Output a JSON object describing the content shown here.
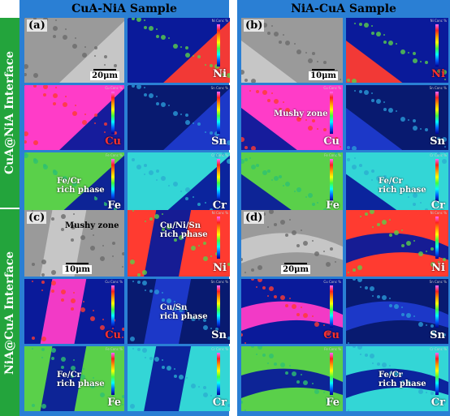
{
  "figure": {
    "columns": [
      {
        "title": "CuA-NiA Sample"
      },
      {
        "title": "NiA-CuA Sample"
      }
    ],
    "rows": [
      {
        "label": "CuA@NiA Interface"
      },
      {
        "label": "NiA@CuA Interface"
      }
    ],
    "blocks": [
      {
        "tag": "(a)",
        "scale_bar": "20μm",
        "maps": [
          {
            "element": "",
            "type": "sem"
          },
          {
            "element": "Ni",
            "type": "ni",
            "legend": "Ni Conc %"
          },
          {
            "element": "Cu",
            "type": "cu",
            "legend": "Cu Conc %",
            "red": true
          },
          {
            "element": "Sn",
            "type": "sn",
            "legend": "Sn Conc %"
          },
          {
            "element": "Fe",
            "type": "fe",
            "legend": "Fe Conc %",
            "annotation": "Fe/Cr\nrich phase"
          },
          {
            "element": "Cr",
            "type": "cr",
            "legend": "Cr Conc %"
          }
        ]
      },
      {
        "tag": "(b)",
        "scale_bar": "10μm",
        "maps": [
          {
            "element": "",
            "type": "sem"
          },
          {
            "element": "Ni",
            "type": "ni",
            "legend": "Ni Conc %",
            "red": true
          },
          {
            "element": "Cu",
            "type": "cu",
            "legend": "Cu Conc %",
            "annotation": "Mushy zone"
          },
          {
            "element": "Sn",
            "type": "sn",
            "legend": "Sn Conc %"
          },
          {
            "element": "Fe",
            "type": "fe",
            "legend": "Fe Conc %"
          },
          {
            "element": "Cr",
            "type": "cr",
            "legend": "Cr Conc %",
            "annotation": "Fe/Cr\nrich phase"
          }
        ]
      },
      {
        "tag": "(c)",
        "scale_bar": "10μm",
        "maps": [
          {
            "element": "",
            "type": "sem",
            "annotation": "Mushy zone"
          },
          {
            "element": "Ni",
            "type": "ni",
            "legend": "Ni Conc %",
            "annotation": "Cu/Ni/Sn\nrich phase"
          },
          {
            "element": "Cu",
            "type": "cu",
            "legend": "Cu Conc %",
            "red": true
          },
          {
            "element": "Sn",
            "type": "sn",
            "legend": "Sn Conc %",
            "annotation": "Cu/Sn\nrich phase"
          },
          {
            "element": "Fe",
            "type": "fe",
            "legend": "Fe Conc %",
            "annotation": "Fe/Cr\nrich phase"
          },
          {
            "element": "Cr",
            "type": "cr",
            "legend": "Cr Conc %"
          }
        ]
      },
      {
        "tag": "(d)",
        "scale_bar": "20μm",
        "maps": [
          {
            "element": "",
            "type": "sem"
          },
          {
            "element": "Ni",
            "type": "ni",
            "legend": "Ni Conc %"
          },
          {
            "element": "Cu",
            "type": "cu",
            "legend": "Cu Conc %",
            "red": true
          },
          {
            "element": "Sn",
            "type": "sn",
            "legend": "Sn Conc %"
          },
          {
            "element": "Fe",
            "type": "fe",
            "legend": "Fe Conc %"
          },
          {
            "element": "Cr",
            "type": "cr",
            "legend": "Cr Conc %",
            "annotation": "Fe/Cr\nrich phase"
          }
        ]
      }
    ],
    "colors": {
      "frame": "#2a7fd4",
      "side_label_bg": "#23a43c",
      "map_pink": "#ff3cc8",
      "map_red": "#ff3b30",
      "map_blue": "#0a1a9a",
      "map_cyan": "#33d6d6",
      "map_green": "#5ad04a",
      "sem_gray": "#9a9a9a"
    }
  }
}
